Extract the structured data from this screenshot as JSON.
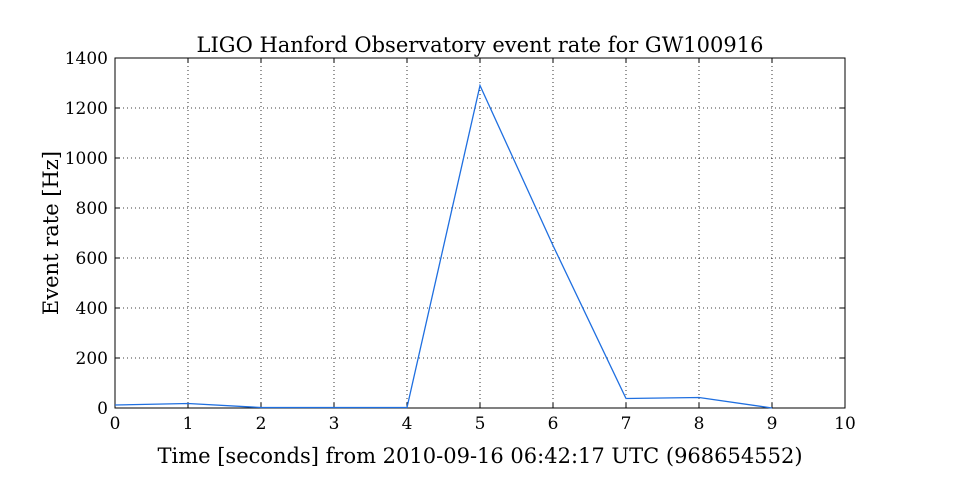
{
  "chart_data": {
    "type": "line",
    "title": "LIGO Hanford Observatory event rate for GW100916",
    "xlabel": "Time [seconds] from 2010-09-16 06:42:17 UTC (968654552)",
    "ylabel": "Event rate [Hz]",
    "xlim": [
      0,
      10
    ],
    "ylim": [
      0,
      1400
    ],
    "xticks": [
      0,
      1,
      2,
      3,
      4,
      5,
      6,
      7,
      8,
      9,
      10
    ],
    "yticks": [
      0,
      200,
      400,
      600,
      800,
      1000,
      1200,
      1400
    ],
    "grid": true,
    "legend": "none",
    "series": [
      {
        "color": "#1f6fe0",
        "x": [
          0,
          1,
          2,
          3,
          4,
          5,
          6,
          7,
          8,
          9
        ],
        "y": [
          12,
          18,
          2,
          2,
          2,
          1290,
          650,
          38,
          42,
          0
        ]
      }
    ]
  }
}
